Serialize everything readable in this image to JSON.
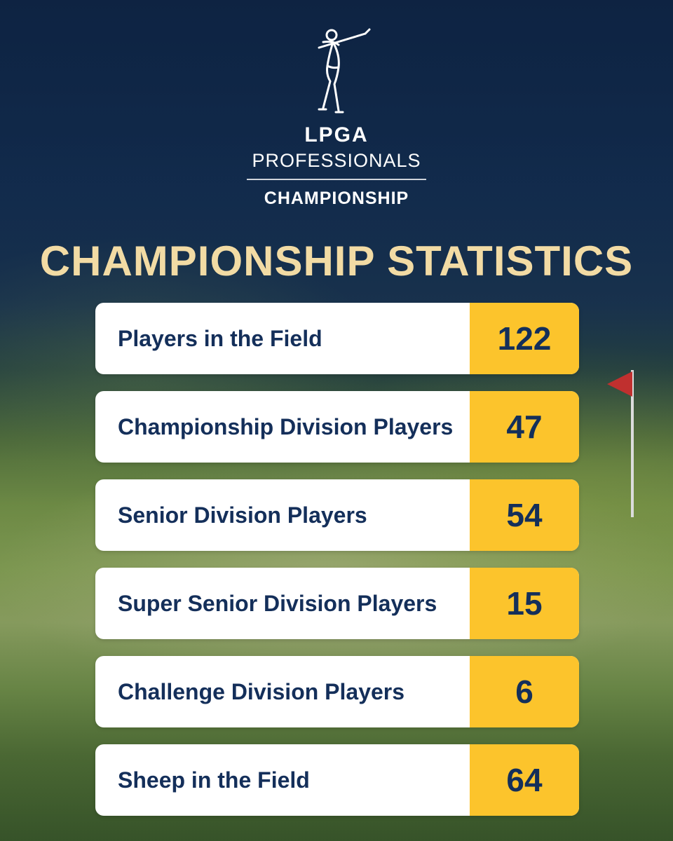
{
  "logo": {
    "brand": "LPGA",
    "line2": "PROFESSIONALS",
    "line3": "CHAMPIONSHIP"
  },
  "heading": "CHAMPIONSHIP STATISTICS",
  "stats": [
    {
      "label": "Players in the Field",
      "value": "122"
    },
    {
      "label": "Championship Division Players",
      "value": "47"
    },
    {
      "label": "Senior Division Players",
      "value": "54"
    },
    {
      "label": "Super Senior Division Players",
      "value": "15"
    },
    {
      "label": "Challenge Division Players",
      "value": "6"
    },
    {
      "label": "Sheep in the Field",
      "value": "64"
    }
  ],
  "colors": {
    "heading": "#f2dba4",
    "value_bg": "#fcc42c",
    "text_navy": "#142f5a",
    "flag": "#c0302f"
  }
}
